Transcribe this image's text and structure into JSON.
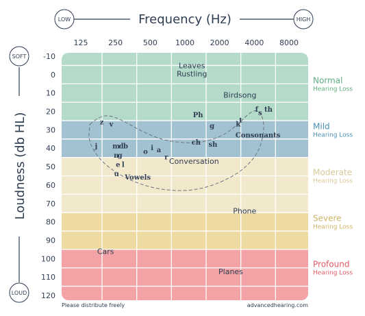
{
  "chart_data": {
    "type": "heatmap",
    "title": "Frequency (Hz)",
    "xlabel": "Frequency (Hz)",
    "ylabel": "Loudness (db HL)",
    "x_scale": "log2",
    "x_ticks": [
      "125",
      "250",
      "500",
      "1000",
      "2000",
      "4000",
      "8000"
    ],
    "y_ticks": [
      "-10",
      "0",
      "10",
      "20",
      "30",
      "40",
      "50",
      "60",
      "70",
      "80",
      "90",
      "100",
      "110",
      "120"
    ],
    "xlim": [
      125,
      8000
    ],
    "ylim": [
      -10,
      120
    ],
    "x_end_labels": {
      "low": "LOW",
      "high": "HIGH"
    },
    "y_end_labels": {
      "soft": "SOFT",
      "loud": "LOUD"
    },
    "bands": [
      {
        "name": "Normal",
        "sub": "Hearing Loss",
        "from": -10,
        "to": 20,
        "color": "#b4dbc9",
        "label_color": "#5fae82"
      },
      {
        "name": "Mild",
        "sub": "Hearing Loss",
        "from": 20,
        "to": 40,
        "color": "#a3c2d1",
        "label_color": "#4a8fb4"
      },
      {
        "name": "Moderate",
        "sub": "Hearing Loss",
        "from": 40,
        "to": 70,
        "color": "#f2e8cc",
        "label_color": "#d8c99a"
      },
      {
        "name": "Severe",
        "sub": "Hearing Loss",
        "from": 70,
        "to": 90,
        "color": "#eedba1",
        "label_color": "#cfb366"
      },
      {
        "name": "Profound",
        "sub": "Hearing Loss",
        "from": 90,
        "to": 120,
        "color": "#f3a3a6",
        "label_color": "#e05a66"
      }
    ],
    "sounds": [
      {
        "lines": [
          "Leaves",
          "Rustling"
        ],
        "x": 1150,
        "y": -5
      },
      {
        "lines": [
          "Birdsong"
        ],
        "x": 3000,
        "y": 11
      },
      {
        "lines": [
          "Conversation"
        ],
        "x": 1200,
        "y": 47
      },
      {
        "lines": [
          "Phone"
        ],
        "x": 3300,
        "y": 74
      },
      {
        "lines": [
          "Cars"
        ],
        "x": 205,
        "y": 96
      },
      {
        "lines": [
          "Planes"
        ],
        "x": 2500,
        "y": 107
      }
    ],
    "phonemes": [
      {
        "text": "z",
        "x": 190,
        "y": 26
      },
      {
        "text": "v",
        "x": 230,
        "y": 27
      },
      {
        "text": "j",
        "x": 170,
        "y": 39
      },
      {
        "text": "m",
        "x": 253,
        "y": 39
      },
      {
        "text": "d",
        "x": 280,
        "y": 39
      },
      {
        "text": "b",
        "x": 306,
        "y": 39
      },
      {
        "text": "n",
        "x": 254,
        "y": 44
      },
      {
        "text": "g",
        "x": 273,
        "y": 44
      },
      {
        "text": "e",
        "x": 263,
        "y": 49
      },
      {
        "text": "l",
        "x": 291,
        "y": 49
      },
      {
        "text": "u",
        "x": 255,
        "y": 54
      },
      {
        "text": "o",
        "x": 455,
        "y": 42
      },
      {
        "text": "i",
        "x": 520,
        "y": 40
      },
      {
        "text": "a",
        "x": 595,
        "y": 41
      },
      {
        "text": "r",
        "x": 690,
        "y": 45
      },
      {
        "text": "Ph",
        "x": 1300,
        "y": 22
      },
      {
        "text": "g",
        "x": 1720,
        "y": 28
      },
      {
        "text": "k",
        "x": 2900,
        "y": 27
      },
      {
        "text": "t",
        "x": 3050,
        "y": 25
      },
      {
        "text": "f",
        "x": 4200,
        "y": 19
      },
      {
        "text": "s",
        "x": 4500,
        "y": 21
      },
      {
        "text": "th",
        "x": 5300,
        "y": 19
      },
      {
        "text": "ch",
        "x": 1250,
        "y": 37
      },
      {
        "text": "sh",
        "x": 1750,
        "y": 38
      }
    ],
    "phoneme_labels": [
      {
        "text": "Vowels",
        "x": 390,
        "y": 56
      },
      {
        "text": "Consonants",
        "x": 4300,
        "y": 33
      }
    ],
    "speech_banana": [
      [
        150,
        27
      ],
      [
        180,
        23
      ],
      [
        220,
        22
      ],
      [
        290,
        25
      ],
      [
        400,
        30
      ],
      [
        600,
        35
      ],
      [
        900,
        37
      ],
      [
        1400,
        37
      ],
      [
        2200,
        33
      ],
      [
        3000,
        26
      ],
      [
        3600,
        21
      ],
      [
        4200,
        19
      ],
      [
        4700,
        22
      ],
      [
        4900,
        30
      ],
      [
        4400,
        42
      ],
      [
        3200,
        52
      ],
      [
        2000,
        59
      ],
      [
        1200,
        63
      ],
      [
        700,
        63
      ],
      [
        420,
        60
      ],
      [
        260,
        54
      ],
      [
        180,
        46
      ],
      [
        145,
        36
      ],
      [
        150,
        27
      ]
    ]
  },
  "footer": {
    "left": "Please distribute freely",
    "right": "advancedhearing.com"
  }
}
